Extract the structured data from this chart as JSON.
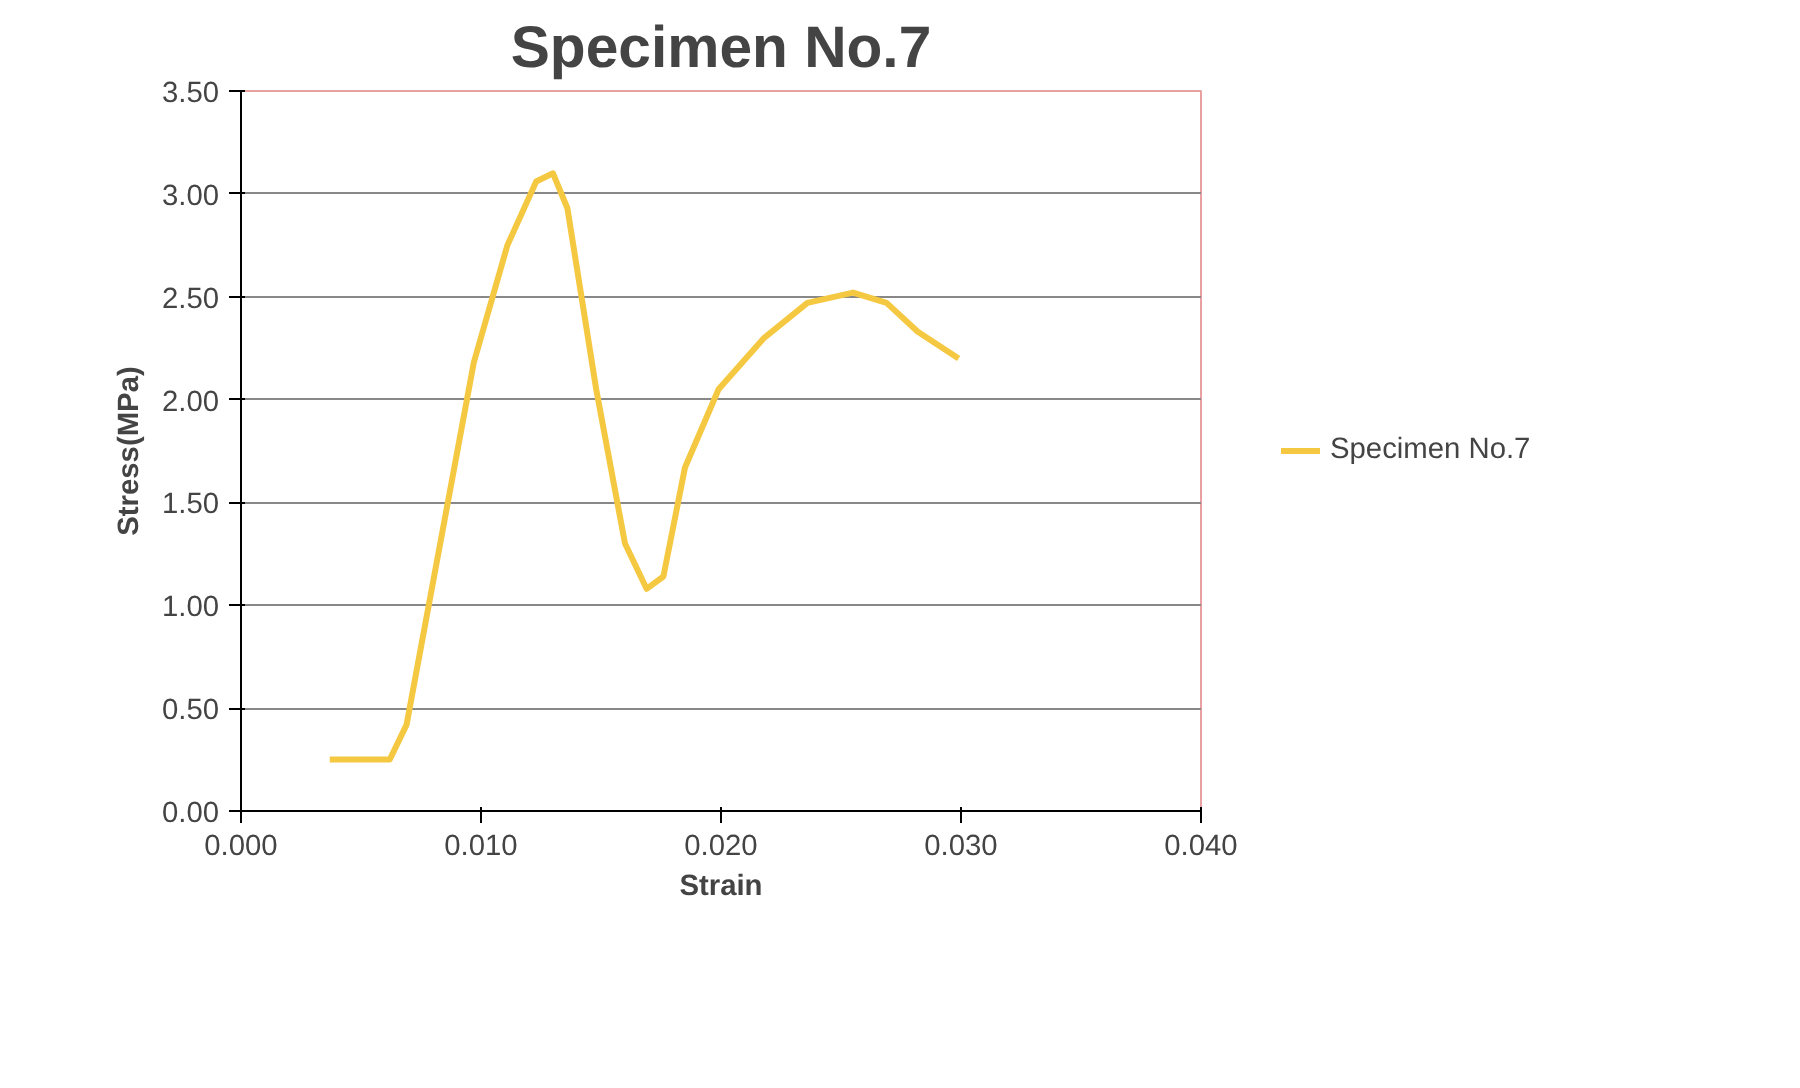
{
  "chart_data": {
    "type": "line",
    "title": "Specimen No.7",
    "xlabel": "Strain",
    "ylabel": "Stress(MPa)",
    "xlim": [
      0,
      0.04
    ],
    "xticks": [
      {
        "value": 0,
        "label": "0.000"
      },
      {
        "value": 0.01,
        "label": "0.010"
      },
      {
        "value": 0.02,
        "label": "0.020"
      },
      {
        "value": 0.03,
        "label": "0.030"
      },
      {
        "value": 0.04,
        "label": "0.040"
      }
    ],
    "ylim": [
      0,
      3.5
    ],
    "yticks": [
      {
        "value": 0,
        "label": "0.00"
      },
      {
        "value": 0.5,
        "label": "0.50"
      },
      {
        "value": 1,
        "label": "1.00"
      },
      {
        "value": 1.5,
        "label": "1.50"
      },
      {
        "value": 2,
        "label": "2.00"
      },
      {
        "value": 2.5,
        "label": "2.50"
      },
      {
        "value": 3,
        "label": "3.00"
      },
      {
        "value": 3.5,
        "label": "3.50"
      }
    ],
    "grid": "y",
    "legend": "right",
    "marker": "none",
    "line_style": "solid",
    "series": [
      {
        "name": "Specimen No.7",
        "color": "#f5c842",
        "x": [
          0.0037,
          0.0062,
          0.0069,
          0.0083,
          0.0097,
          0.0111,
          0.0123,
          0.013,
          0.0136,
          0.0148,
          0.016,
          0.0169,
          0.0176,
          0.0185,
          0.0199,
          0.0218,
          0.0236,
          0.0255,
          0.0269,
          0.0282,
          0.0299
        ],
        "values": [
          0.25,
          0.25,
          0.42,
          1.3,
          2.18,
          2.75,
          3.06,
          3.1,
          2.93,
          2.05,
          1.3,
          1.08,
          1.14,
          1.67,
          2.05,
          2.3,
          2.47,
          2.52,
          2.47,
          2.33,
          2.2
        ]
      }
    ]
  }
}
